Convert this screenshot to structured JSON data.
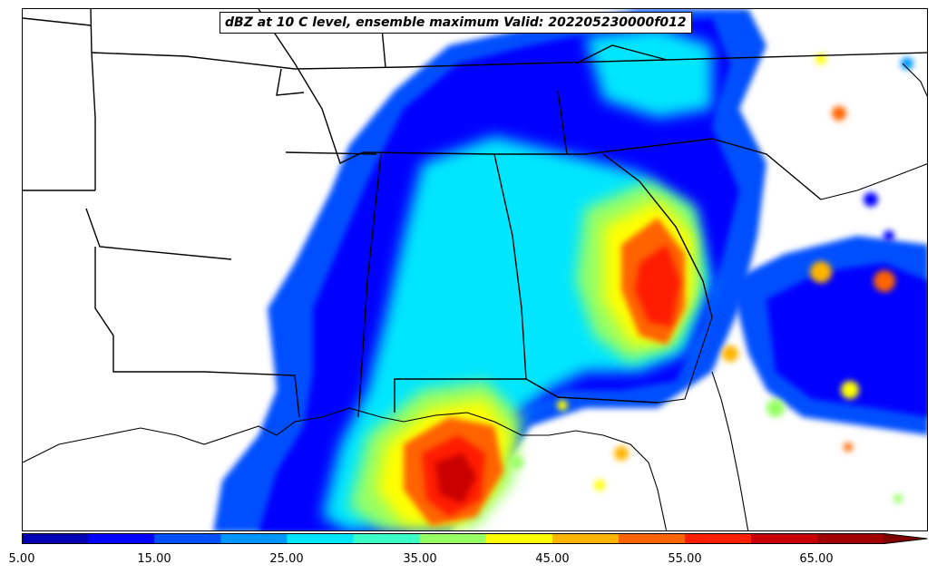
{
  "title": "dBZ at 10 C level, ensemble maximum Valid: 202205230000f012",
  "colorbar": {
    "colors": [
      "#0000b4",
      "#0000ff",
      "#0050ff",
      "#0096ff",
      "#00e6ff",
      "#3cffc8",
      "#96ff64",
      "#ffff00",
      "#ffb400",
      "#ff6400",
      "#ff1e00",
      "#c80000",
      "#a00000"
    ],
    "extend_color": "#800000",
    "ticks": [
      "5.00",
      "15.00",
      "25.00",
      "35.00",
      "45.00",
      "55.00",
      "65.00"
    ]
  },
  "boundary_color": "#000000"
}
